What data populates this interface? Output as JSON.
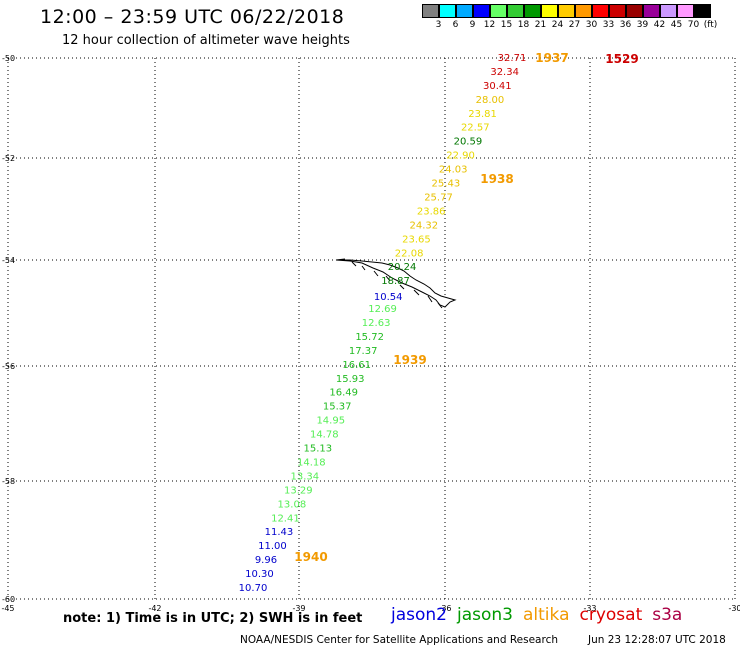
{
  "header": {
    "title": "12:00 – 23:59 UTC 06/22/2018",
    "subtitle": "12 hour collection of altimeter wave heights"
  },
  "legend": {
    "unit": "(ft)",
    "colors": [
      "#808080",
      "#00ffff",
      "#00aaff",
      "#0000ff",
      "#66ff66",
      "#33cc33",
      "#009900",
      "#ffff00",
      "#ffcc00",
      "#ff9900",
      "#ff0000",
      "#cc0000",
      "#990000",
      "#990099",
      "#cc99ff",
      "#ff99ff",
      "#000000"
    ],
    "ticks": [
      "3",
      "6",
      "9",
      "12",
      "15",
      "18",
      "21",
      "24",
      "27",
      "30",
      "33",
      "36",
      "39",
      "42",
      "45",
      "70"
    ]
  },
  "axes": {
    "lat_labels": [
      "-50",
      "-52",
      "-54",
      "-56",
      "-58",
      "-60"
    ],
    "lon_labels": [
      "-45",
      "-42",
      "-39",
      "-36",
      "-33",
      "-30"
    ]
  },
  "tracks": [
    {
      "satellite": "altika",
      "time_labels": [
        "1937",
        "1938",
        "1939",
        "1940"
      ],
      "time_color": "#f29a00",
      "points": [
        {
          "v": "32.71",
          "c": "#cc0000"
        },
        {
          "v": "32.34",
          "c": "#cc0000"
        },
        {
          "v": "30.41",
          "c": "#cc0000"
        },
        {
          "v": "28.00",
          "c": "#e8c000"
        },
        {
          "v": "23.81",
          "c": "#e8d800"
        },
        {
          "v": "22.57",
          "c": "#e8d800"
        },
        {
          "v": "20.59",
          "c": "#007700"
        },
        {
          "v": "22.90",
          "c": "#e8d800"
        },
        {
          "v": "24.03",
          "c": "#e8c000"
        },
        {
          "v": "25.43",
          "c": "#e8c000"
        },
        {
          "v": "25.77",
          "c": "#e8c000"
        },
        {
          "v": "23.86",
          "c": "#e8d800"
        },
        {
          "v": "24.32",
          "c": "#e8c000"
        },
        {
          "v": "23.65",
          "c": "#e8d800"
        },
        {
          "v": "22.08",
          "c": "#e8d800"
        },
        {
          "v": "20.24",
          "c": "#007700"
        },
        {
          "v": "18.87",
          "c": "#007700"
        },
        {
          "v": "10.54",
          "c": "#0000cc"
        },
        {
          "v": "12.69",
          "c": "#55ee55"
        },
        {
          "v": "12.63",
          "c": "#55ee55"
        },
        {
          "v": "15.72",
          "c": "#22bb22"
        },
        {
          "v": "17.37",
          "c": "#22bb22"
        },
        {
          "v": "16.61",
          "c": "#22bb22"
        },
        {
          "v": "15.93",
          "c": "#22bb22"
        },
        {
          "v": "16.49",
          "c": "#22bb22"
        },
        {
          "v": "15.37",
          "c": "#22bb22"
        },
        {
          "v": "14.95",
          "c": "#55ee55"
        },
        {
          "v": "14.78",
          "c": "#55ee55"
        },
        {
          "v": "15.13",
          "c": "#22bb22"
        },
        {
          "v": "14.18",
          "c": "#55ee55"
        },
        {
          "v": "13.34",
          "c": "#55ee55"
        },
        {
          "v": "13.29",
          "c": "#55ee55"
        },
        {
          "v": "13.08",
          "c": "#55ee55"
        },
        {
          "v": "12.41",
          "c": "#55ee55"
        },
        {
          "v": "11.43",
          "c": "#0000cc"
        },
        {
          "v": "11.00",
          "c": "#0000cc"
        },
        {
          "v": "9.96",
          "c": "#0000cc"
        },
        {
          "v": "10.30",
          "c": "#0000cc"
        },
        {
          "v": "10.70",
          "c": "#0000cc"
        }
      ]
    },
    {
      "satellite": "cryosat",
      "time_labels": [
        "1529"
      ],
      "time_color": "#cc0000",
      "points": []
    }
  ],
  "note": "note: 1) Time is in UTC; 2) SWH is in feet",
  "satellites": [
    {
      "name": "jason2",
      "color": "#0000dd"
    },
    {
      "name": "jason3",
      "color": "#009900"
    },
    {
      "name": "altika",
      "color": "#f29a00"
    },
    {
      "name": "cryosat",
      "color": "#dd0000"
    },
    {
      "name": "s3a",
      "color": "#aa0044"
    }
  ],
  "footer": {
    "credit": "NOAA/NESDIS Center for Satellite Applications and Research",
    "timestamp": "Jun 23 12:28:07 UTC 2018"
  }
}
